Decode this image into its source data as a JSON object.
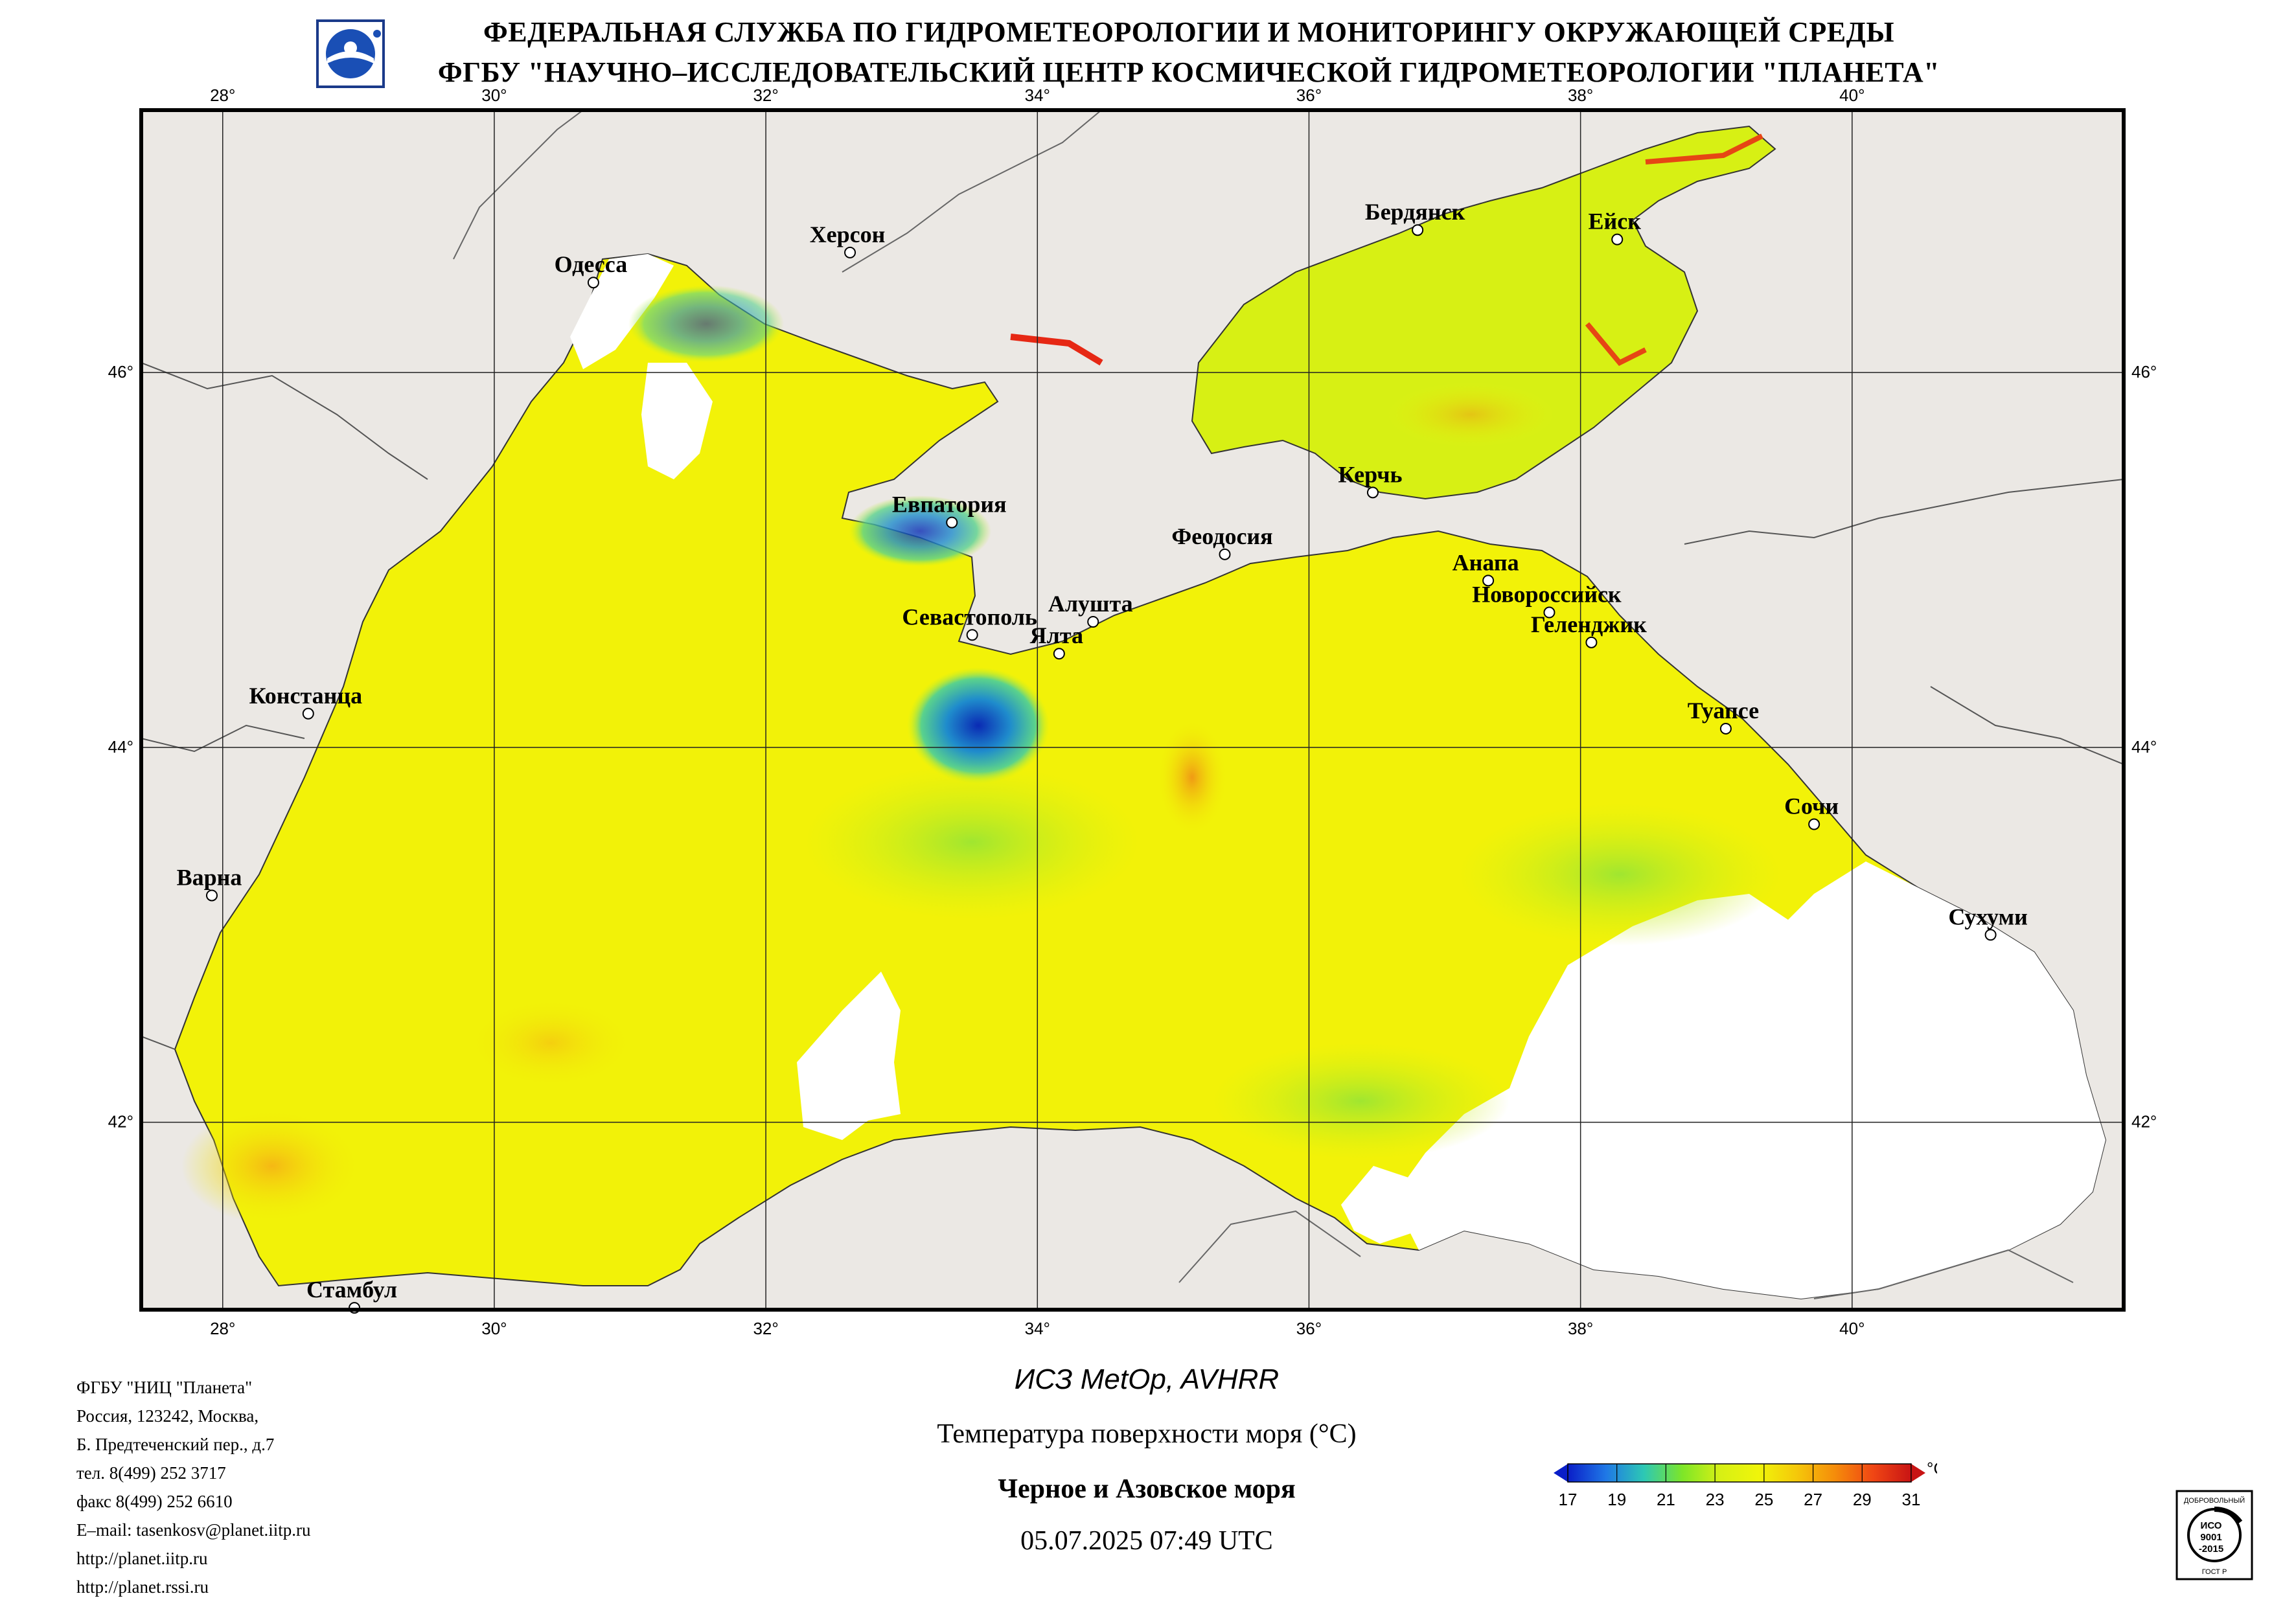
{
  "header": {
    "line1": "ФЕДЕРАЛЬНАЯ СЛУЖБА ПО ГИДРОМЕТЕОРОЛОГИИ И МОНИТОРИНГУ ОКРУЖАЮЩЕЙ СРЕДЫ",
    "line2": "ФГБУ \"НАУЧНО–ИССЛЕДОВАТЕЛЬСКИЙ ЦЕНТР КОСМИЧЕСКОЙ ГИДРОМЕТЕОРОЛОГИИ \"ПЛАНЕТА\""
  },
  "logo": {
    "icon": "planeta-logo-icon"
  },
  "map": {
    "lon_labels": [
      "28°",
      "30°",
      "32°",
      "34°",
      "36°",
      "38°",
      "40°"
    ],
    "lon_values": [
      28,
      30,
      32,
      34,
      36,
      38,
      40
    ],
    "lat_labels": [
      "46°",
      "44°",
      "42°"
    ],
    "lat_values": [
      46,
      44,
      42
    ],
    "lon_range": [
      27.4,
      42.0
    ],
    "lat_range": [
      41.0,
      47.4
    ],
    "colors": {
      "land": "#ebe8e4",
      "cloud": "#ffffff",
      "sea_warm": "#f2f208",
      "sea_mid": "#c8f020",
      "sea_cool": "#28c8a0",
      "sea_cold": "#1848c8",
      "sea_hot": "#f5a010",
      "coast": "#333333"
    },
    "cities": [
      {
        "name": "Одесса",
        "lon": 30.73,
        "lat": 46.48
      },
      {
        "name": "Херсон",
        "lon": 32.62,
        "lat": 46.64
      },
      {
        "name": "Бердянск",
        "lon": 36.8,
        "lat": 46.76
      },
      {
        "name": "Ейск",
        "lon": 38.27,
        "lat": 46.71
      },
      {
        "name": "Евпатория",
        "lon": 33.37,
        "lat": 45.2
      },
      {
        "name": "Керчь",
        "lon": 36.47,
        "lat": 45.36
      },
      {
        "name": "Феодосия",
        "lon": 35.38,
        "lat": 45.03
      },
      {
        "name": "Анапа",
        "lon": 37.32,
        "lat": 44.89
      },
      {
        "name": "Новороссийск",
        "lon": 37.77,
        "lat": 44.72
      },
      {
        "name": "Геленджик",
        "lon": 38.08,
        "lat": 44.56
      },
      {
        "name": "Алушта",
        "lon": 34.41,
        "lat": 44.67
      },
      {
        "name": "Севастополь",
        "lon": 33.52,
        "lat": 44.6
      },
      {
        "name": "Ялта",
        "lon": 34.16,
        "lat": 44.5
      },
      {
        "name": "Констанца",
        "lon": 28.63,
        "lat": 44.18
      },
      {
        "name": "Туапсе",
        "lon": 39.07,
        "lat": 44.1
      },
      {
        "name": "Сочи",
        "lon": 39.72,
        "lat": 43.59
      },
      {
        "name": "Варна",
        "lon": 27.92,
        "lat": 43.21
      },
      {
        "name": "Сухуми",
        "lon": 41.02,
        "lat": 43.0
      },
      {
        "name": "Стамбул",
        "lon": 28.97,
        "lat": 41.01
      }
    ]
  },
  "footer": {
    "org": [
      "ФГБУ \"НИЦ \"Планета\"",
      "Россия, 123242, Москва,",
      "Б. Предтеченский пер., д.7",
      "тел. 8(499) 252 3717",
      "факс 8(499) 252 6610",
      "E–mail: tasenkosv@planet.iitp.ru",
      "http://planet.iitp.ru",
      "http://planet.rssi.ru"
    ],
    "satellite": "ИСЗ MetOp, AVHRR",
    "parameter": "Температура поверхности моря (°C)",
    "region": "Черное и Азовское моря",
    "datetime": "05.07.2025 07:49 UTC"
  },
  "colorbar": {
    "unit": "°C",
    "ticks": [
      "17",
      "19",
      "21",
      "23",
      "25",
      "27",
      "29",
      "31"
    ],
    "stops": [
      "#0a1ec8",
      "#1f78e6",
      "#2dc8b4",
      "#7de628",
      "#d7f014",
      "#f0f50a",
      "#f5c80a",
      "#f58c0a",
      "#f04614",
      "#c81414"
    ]
  },
  "cert": {
    "top_text": "ДОБРОВОЛЬНЫЙ",
    "line1": "ИСО",
    "line2": "9001",
    "line3": "-2015",
    "bottom_text": "ГОСТ Р"
  }
}
